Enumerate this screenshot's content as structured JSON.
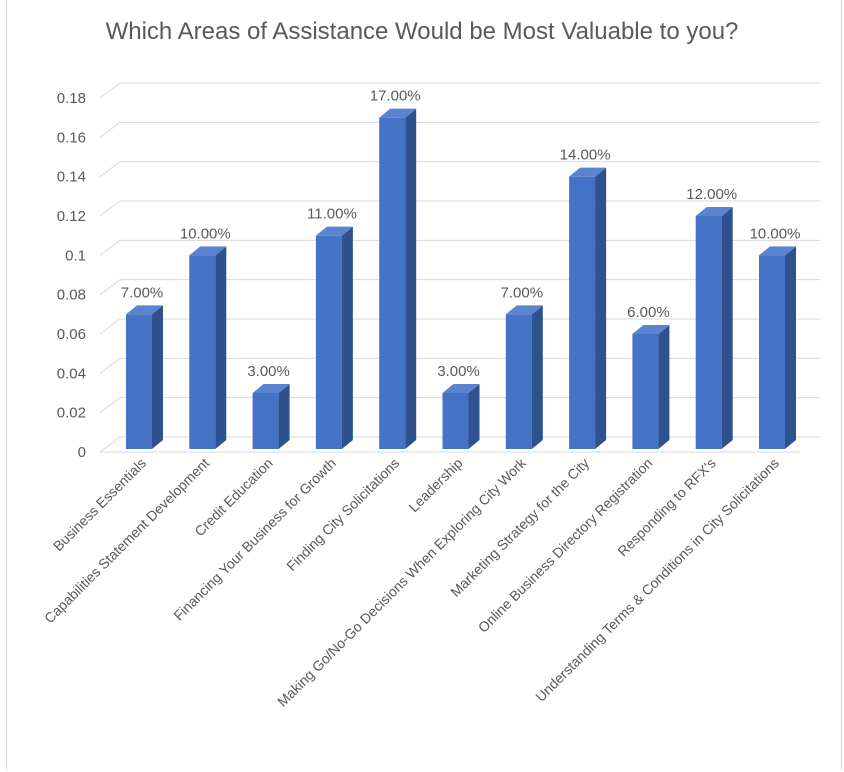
{
  "chart_data": {
    "type": "bar",
    "title": "Which Areas of Assistance Would be Most Valuable to you?",
    "categories": [
      "Business Essentials",
      "Capabilities Statement Development",
      "Credit Education",
      "Financing Your Business for Growth",
      "Finding City Solicitations",
      "Leadership",
      "Making Go/No-Go Decisions When Exploring City Work",
      "Marketing Strategy for the City",
      "Online Business Directory Registration",
      "Responding to RFX's",
      "Understanding Terms & Conditions in City Solicitations"
    ],
    "values": [
      0.07,
      0.1,
      0.03,
      0.11,
      0.17,
      0.03,
      0.07,
      0.14,
      0.06,
      0.12,
      0.1
    ],
    "data_labels": [
      "7.00%",
      "10.00%",
      "3.00%",
      "11.00%",
      "17.00%",
      "3.00%",
      "7.00%",
      "14.00%",
      "6.00%",
      "12.00%",
      "10.00%"
    ],
    "y_ticks": [
      "0",
      "0.02",
      "0.04",
      "0.06",
      "0.08",
      "0.1",
      "0.12",
      "0.14",
      "0.16",
      "0.18"
    ],
    "ylim": [
      0,
      0.18
    ],
    "xlabel": "",
    "ylabel": "",
    "grid": true,
    "legend": "none",
    "colors": {
      "bar_front": "#4472C4",
      "bar_side": "#2F528F",
      "bar_top": "#5B84D0",
      "gridline": "#d9d9d9",
      "text": "#595959"
    }
  }
}
